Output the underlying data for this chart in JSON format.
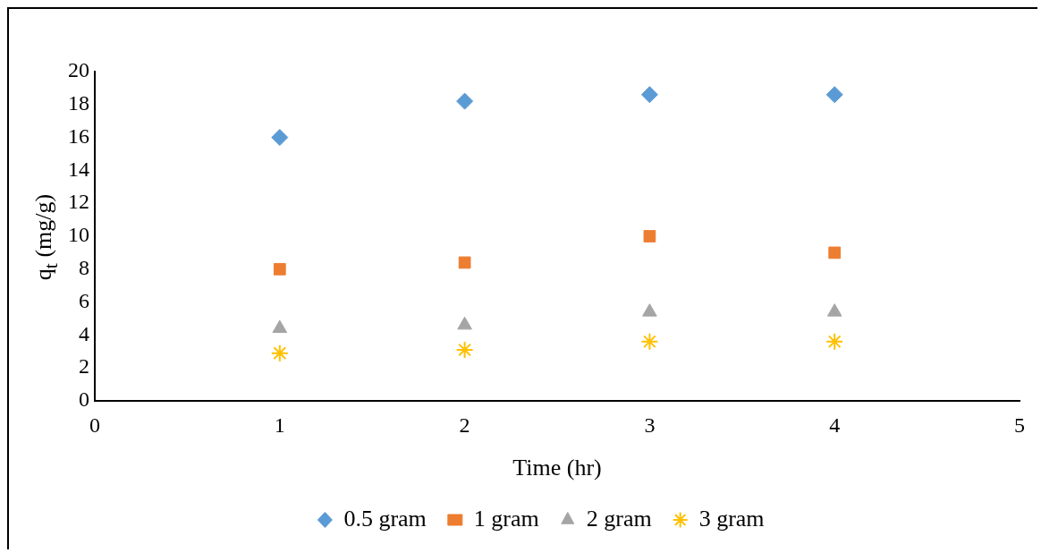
{
  "chart_data": {
    "type": "scatter",
    "xlabel": "Time (hr)",
    "ylabel": "q$_{t}$ (mg/g)",
    "x": [
      1,
      2,
      3,
      4
    ],
    "series": [
      {
        "name": "0.5 gram",
        "color": "#5b9bd5",
        "marker": "diamond",
        "values": [
          16,
          18.2,
          18.6,
          18.6
        ]
      },
      {
        "name": "1 gram",
        "color": "#ed7d31",
        "marker": "square",
        "values": [
          8.0,
          8.4,
          10.0,
          9.0
        ]
      },
      {
        "name": "2 gram",
        "color": "#a5a5a5",
        "marker": "triangle",
        "values": [
          4.4,
          4.6,
          5.4,
          5.4
        ]
      },
      {
        "name": "3 gram",
        "color": "#ffc000",
        "marker": "cross",
        "values": [
          2.9,
          3.1,
          3.6,
          3.6
        ]
      }
    ],
    "xlim": [
      0,
      5
    ],
    "xticks": [
      0,
      1,
      2,
      3,
      4,
      5
    ],
    "ylim": [
      0,
      20
    ],
    "yticks": [
      0,
      2,
      4,
      6,
      8,
      10,
      12,
      14,
      16,
      18,
      20
    ],
    "grid": false,
    "legend": "bottom"
  }
}
